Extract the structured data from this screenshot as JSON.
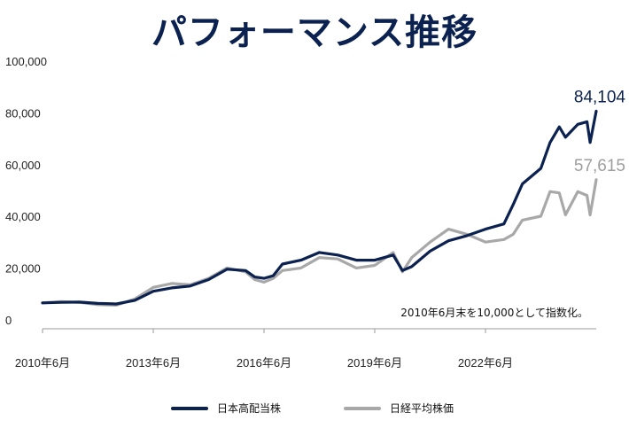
{
  "title": "パフォーマンス推移",
  "chart_data": {
    "type": "line",
    "x_ticks": [
      "2010年6月",
      "2013年6月",
      "2016年6月",
      "2019年6月",
      "2022年6月"
    ],
    "y_ticks": [
      "0",
      "20,000",
      "40,000",
      "60,000",
      "80,000",
      "100,000"
    ],
    "ylim": [
      0,
      100000
    ],
    "xlim": [
      "2010-06",
      "2025-06"
    ],
    "grid": false,
    "note": "2010年6月末を10,000として指数化。",
    "legend_position": "bottom",
    "series": [
      {
        "name": "日本高配当株",
        "color": "#0b2150",
        "end_label": "84,104",
        "end_value": 84104,
        "points": [
          [
            "2010-06",
            10000
          ],
          [
            "2010-12",
            10200
          ],
          [
            "2011-06",
            10300
          ],
          [
            "2011-12",
            9800
          ],
          [
            "2012-06",
            9600
          ],
          [
            "2012-12",
            11000
          ],
          [
            "2013-06",
            14500
          ],
          [
            "2013-12",
            15800
          ],
          [
            "2014-06",
            16500
          ],
          [
            "2014-12",
            19000
          ],
          [
            "2015-06",
            23000
          ],
          [
            "2015-12",
            22500
          ],
          [
            "2016-03",
            20000
          ],
          [
            "2016-06",
            19500
          ],
          [
            "2016-09",
            20500
          ],
          [
            "2016-12",
            25000
          ],
          [
            "2017-06",
            26500
          ],
          [
            "2017-12",
            29500
          ],
          [
            "2018-06",
            28500
          ],
          [
            "2018-12",
            26500
          ],
          [
            "2019-06",
            26500
          ],
          [
            "2019-12",
            28500
          ],
          [
            "2020-03",
            22500
          ],
          [
            "2020-06",
            24000
          ],
          [
            "2020-12",
            30000
          ],
          [
            "2021-06",
            34000
          ],
          [
            "2021-12",
            36000
          ],
          [
            "2022-06",
            38500
          ],
          [
            "2022-12",
            40500
          ],
          [
            "2023-03",
            48000
          ],
          [
            "2023-06",
            56000
          ],
          [
            "2023-12",
            62000
          ],
          [
            "2024-03",
            72000
          ],
          [
            "2024-06",
            78000
          ],
          [
            "2024-08",
            74000
          ],
          [
            "2024-12",
            79000
          ],
          [
            "2025-03",
            80000
          ],
          [
            "2025-04",
            72000
          ],
          [
            "2025-06",
            84104
          ]
        ]
      },
      {
        "name": "日経平均株価",
        "color": "#a8a8a8",
        "end_label": "57,615",
        "end_value": 57615,
        "points": [
          [
            "2010-06",
            10000
          ],
          [
            "2010-12",
            10500
          ],
          [
            "2011-06",
            10200
          ],
          [
            "2011-12",
            9300
          ],
          [
            "2012-06",
            9100
          ],
          [
            "2012-12",
            11500
          ],
          [
            "2013-06",
            16000
          ],
          [
            "2013-12",
            17500
          ],
          [
            "2014-06",
            17000
          ],
          [
            "2014-12",
            19500
          ],
          [
            "2015-06",
            23500
          ],
          [
            "2015-12",
            22000
          ],
          [
            "2016-03",
            19000
          ],
          [
            "2016-06",
            18000
          ],
          [
            "2016-09",
            19500
          ],
          [
            "2016-12",
            22500
          ],
          [
            "2017-06",
            23500
          ],
          [
            "2017-12",
            27500
          ],
          [
            "2018-06",
            27000
          ],
          [
            "2018-12",
            23500
          ],
          [
            "2019-06",
            24500
          ],
          [
            "2019-12",
            29500
          ],
          [
            "2020-03",
            22000
          ],
          [
            "2020-06",
            27500
          ],
          [
            "2020-12",
            33500
          ],
          [
            "2021-06",
            38500
          ],
          [
            "2021-12",
            36500
          ],
          [
            "2022-06",
            33500
          ],
          [
            "2022-12",
            34500
          ],
          [
            "2023-03",
            36500
          ],
          [
            "2023-06",
            42000
          ],
          [
            "2023-12",
            43500
          ],
          [
            "2024-03",
            53000
          ],
          [
            "2024-06",
            52500
          ],
          [
            "2024-08",
            44000
          ],
          [
            "2024-12",
            53000
          ],
          [
            "2025-03",
            51500
          ],
          [
            "2025-04",
            44000
          ],
          [
            "2025-06",
            57615
          ]
        ]
      }
    ]
  }
}
